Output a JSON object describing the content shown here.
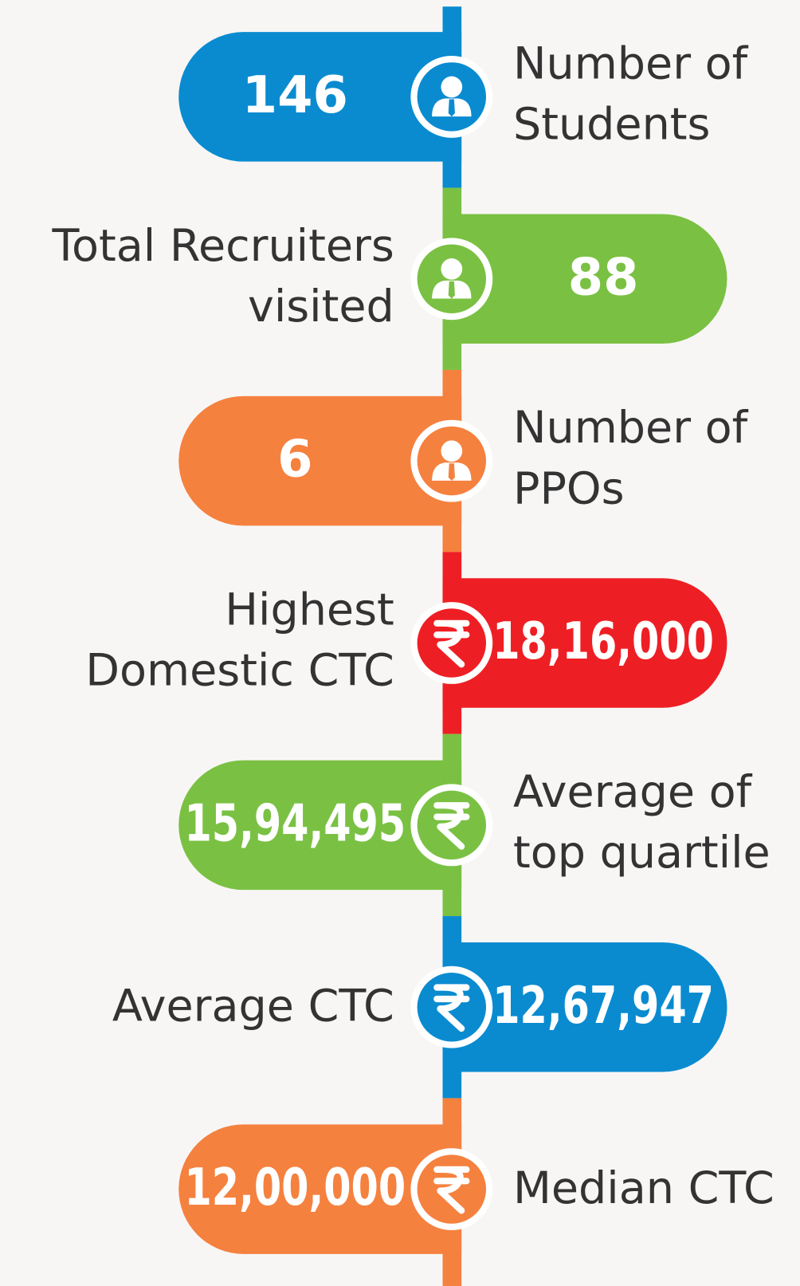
{
  "items": [
    {
      "value": "146",
      "label": [
        "Number of",
        "Students"
      ],
      "color": "#0a8bd0"
    },
    {
      "value": "88",
      "label": [
        "Total Recruiters",
        "visited"
      ],
      "color": "#7ac143"
    },
    {
      "value": "6",
      "label": [
        "Number of",
        "PPOs"
      ],
      "color": "#f5813f"
    },
    {
      "value": "18,16,000",
      "label": [
        "Highest",
        "Domestic CTC"
      ],
      "color": "#ee1f24"
    },
    {
      "value": "15,94,495",
      "label": [
        "Average of",
        "top quartile"
      ],
      "color": "#7ac143"
    },
    {
      "value": "12,67,947",
      "label": [
        "Average CTC"
      ],
      "color": "#0a8bd0"
    },
    {
      "value": "12,00,000",
      "label": [
        "Median CTC"
      ],
      "color": "#f5813f"
    }
  ]
}
